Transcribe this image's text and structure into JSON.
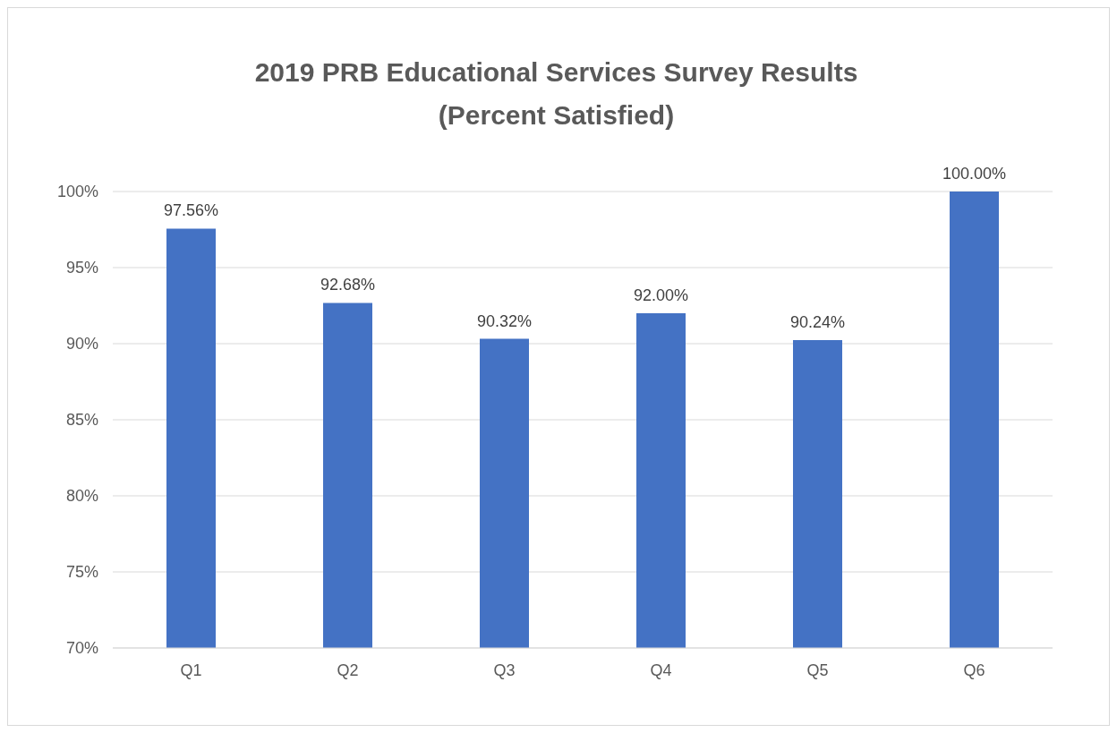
{
  "chart_data": {
    "type": "bar",
    "title": "2019 PRB Educational Services Survey Results",
    "subtitle": "(Percent Satisfied)",
    "categories": [
      "Q1",
      "Q2",
      "Q3",
      "Q4",
      "Q5",
      "Q6"
    ],
    "values": [
      97.56,
      92.68,
      90.32,
      92.0,
      90.24,
      100.0
    ],
    "value_labels": [
      "97.56%",
      "92.68%",
      "90.32%",
      "92.00%",
      "90.24%",
      "100.00%"
    ],
    "color": "#4472c4",
    "ylim": [
      70,
      100
    ],
    "yticks": [
      {
        "value": 70,
        "label": "70%"
      },
      {
        "value": 75,
        "label": "75%"
      },
      {
        "value": 80,
        "label": "80%"
      },
      {
        "value": 85,
        "label": "85%"
      },
      {
        "value": 90,
        "label": "90%"
      },
      {
        "value": 95,
        "label": "95%"
      },
      {
        "value": 100,
        "label": "100%"
      }
    ],
    "grid": "y",
    "legend": false
  }
}
